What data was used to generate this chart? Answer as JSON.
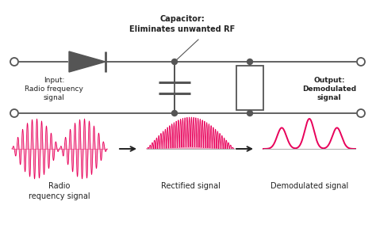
{
  "background_color": "#ffffff",
  "circuit_color": "#555555",
  "signal_color": "#e8005a",
  "signal_fill_color": "#e8005a",
  "arrow_color": "#222222",
  "text_color": "#222222",
  "capacitor_label": "Capacitor:\nEliminates unwanted RF",
  "input_label": "Input:\nRadio frequency\nsignal",
  "output_label": "Output:\nDemodulated\nsignal",
  "label1": "Radio\nrequency signal",
  "label2": "Rectified signal",
  "label3": "Demodulated signal",
  "figw": 4.74,
  "figh": 2.88,
  "dpi": 100
}
